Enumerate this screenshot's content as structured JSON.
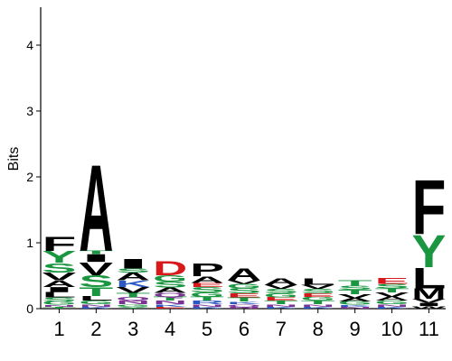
{
  "chart_data": {
    "type": "sequence_logo",
    "ylabel": "Bits",
    "ylim": [
      0,
      4.5
    ],
    "yticks": [
      "0",
      "1",
      "2",
      "3",
      "4"
    ],
    "positions": [
      "1",
      "2",
      "3",
      "4",
      "5",
      "6",
      "7",
      "8",
      "9",
      "10",
      "11"
    ],
    "colors": {
      "hydrophobic": "#000000",
      "polar": "#1a9641",
      "acidic": "#d7191c",
      "basic": "#2b59c3",
      "neutral": "#7b3294"
    },
    "letter_colors": {
      "A": "#000000",
      "V": "#000000",
      "L": "#000000",
      "I": "#000000",
      "P": "#000000",
      "W": "#000000",
      "F": "#000000",
      "M": "#000000",
      "G": "#1a9641",
      "S": "#1a9641",
      "T": "#1a9641",
      "Y": "#1a9641",
      "C": "#1a9641",
      "N": "#7b3294",
      "Q": "#7b3294",
      "D": "#d7191c",
      "E": "#d7191c",
      "K": "#2b59c3",
      "R": "#2b59c3",
      "H": "#2b59c3"
    },
    "stacks": [
      [
        {
          "letter": "T",
          "bits": 0.03
        },
        {
          "letter": "N",
          "bits": 0.03
        },
        {
          "letter": "G",
          "bits": 0.05
        },
        {
          "letter": "S",
          "bits": 0.06
        },
        {
          "letter": "L",
          "bits": 0.08
        },
        {
          "letter": "I",
          "bits": 0.08
        },
        {
          "letter": "A",
          "bits": 0.1
        },
        {
          "letter": "V",
          "bits": 0.12
        },
        {
          "letter": "S",
          "bits": 0.15
        },
        {
          "letter": "Y",
          "bits": 0.18
        },
        {
          "letter": "F",
          "bits": 0.22
        }
      ],
      [
        {
          "letter": "K",
          "bits": 0.03
        },
        {
          "letter": "N",
          "bits": 0.04
        },
        {
          "letter": "G",
          "bits": 0.05
        },
        {
          "letter": "L",
          "bits": 0.07
        },
        {
          "letter": "T",
          "bits": 0.14
        },
        {
          "letter": "S",
          "bits": 0.18
        },
        {
          "letter": "V",
          "bits": 0.2
        },
        {
          "letter": "I",
          "bits": 0.12
        },
        {
          "letter": "T",
          "bits": 0.05
        },
        {
          "letter": "A",
          "bits": 1.35
        }
      ],
      [
        {
          "letter": "Y",
          "bits": 0.03
        },
        {
          "letter": "G",
          "bits": 0.04
        },
        {
          "letter": "N",
          "bits": 0.05
        },
        {
          "letter": "Q",
          "bits": 0.05
        },
        {
          "letter": "T",
          "bits": 0.07
        },
        {
          "letter": "V",
          "bits": 0.09
        },
        {
          "letter": "K",
          "bits": 0.1
        },
        {
          "letter": "A",
          "bits": 0.12
        },
        {
          "letter": "S",
          "bits": 0.06
        },
        {
          "letter": "I",
          "bits": 0.15
        }
      ],
      [
        {
          "letter": "E",
          "bits": 0.03
        },
        {
          "letter": "K",
          "bits": 0.04
        },
        {
          "letter": "N",
          "bits": 0.05
        },
        {
          "letter": "T",
          "bits": 0.06
        },
        {
          "letter": "Q",
          "bits": 0.06
        },
        {
          "letter": "A",
          "bits": 0.08
        },
        {
          "letter": "S",
          "bits": 0.09
        },
        {
          "letter": "G",
          "bits": 0.1
        },
        {
          "letter": "D",
          "bits": 0.22
        }
      ],
      [
        {
          "letter": "K",
          "bits": 0.03
        },
        {
          "letter": "N",
          "bits": 0.04
        },
        {
          "letter": "R",
          "bits": 0.05
        },
        {
          "letter": "T",
          "bits": 0.06
        },
        {
          "letter": "G",
          "bits": 0.07
        },
        {
          "letter": "S",
          "bits": 0.08
        },
        {
          "letter": "E",
          "bits": 0.06
        },
        {
          "letter": "A",
          "bits": 0.1
        },
        {
          "letter": "P",
          "bits": 0.2
        }
      ],
      [
        {
          "letter": "N",
          "bits": 0.03
        },
        {
          "letter": "Q",
          "bits": 0.04
        },
        {
          "letter": "K",
          "bits": 0.04
        },
        {
          "letter": "T",
          "bits": 0.06
        },
        {
          "letter": "E",
          "bits": 0.06
        },
        {
          "letter": "S",
          "bits": 0.08
        },
        {
          "letter": "G",
          "bits": 0.07
        },
        {
          "letter": "V",
          "bits": 0.05
        },
        {
          "letter": "A",
          "bits": 0.18
        }
      ],
      [
        {
          "letter": "K",
          "bits": 0.03
        },
        {
          "letter": "N",
          "bits": 0.04
        },
        {
          "letter": "T",
          "bits": 0.05
        },
        {
          "letter": "E",
          "bits": 0.05
        },
        {
          "letter": "G",
          "bits": 0.06
        },
        {
          "letter": "S",
          "bits": 0.07
        },
        {
          "letter": "V",
          "bits": 0.06
        },
        {
          "letter": "A",
          "bits": 0.1
        }
      ],
      [
        {
          "letter": "K",
          "bits": 0.03
        },
        {
          "letter": "N",
          "bits": 0.04
        },
        {
          "letter": "T",
          "bits": 0.05
        },
        {
          "letter": "G",
          "bits": 0.06
        },
        {
          "letter": "E",
          "bits": 0.05
        },
        {
          "letter": "S",
          "bits": 0.07
        },
        {
          "letter": "V",
          "bits": 0.06
        },
        {
          "letter": "L",
          "bits": 0.1
        }
      ],
      [
        {
          "letter": "N",
          "bits": 0.03
        },
        {
          "letter": "K",
          "bits": 0.03
        },
        {
          "letter": "G",
          "bits": 0.05
        },
        {
          "letter": "A",
          "bits": 0.05
        },
        {
          "letter": "V",
          "bits": 0.06
        },
        {
          "letter": "T",
          "bits": 0.07
        },
        {
          "letter": "S",
          "bits": 0.06
        },
        {
          "letter": "T",
          "bits": 0.08
        }
      ],
      [
        {
          "letter": "K",
          "bits": 0.03
        },
        {
          "letter": "N",
          "bits": 0.04
        },
        {
          "letter": "G",
          "bits": 0.05
        },
        {
          "letter": "A",
          "bits": 0.06
        },
        {
          "letter": "V",
          "bits": 0.07
        },
        {
          "letter": "T",
          "bits": 0.06
        },
        {
          "letter": "S",
          "bits": 0.07
        },
        {
          "letter": "E",
          "bits": 0.09
        }
      ],
      [
        {
          "letter": "W",
          "bits": 0.04
        },
        {
          "letter": "I",
          "bits": 0.05
        },
        {
          "letter": "V",
          "bits": 0.06
        },
        {
          "letter": "M",
          "bits": 0.16
        },
        {
          "letter": "L",
          "bits": 0.32
        },
        {
          "letter": "Y",
          "bits": 0.5
        },
        {
          "letter": "F",
          "bits": 0.85
        }
      ]
    ]
  }
}
